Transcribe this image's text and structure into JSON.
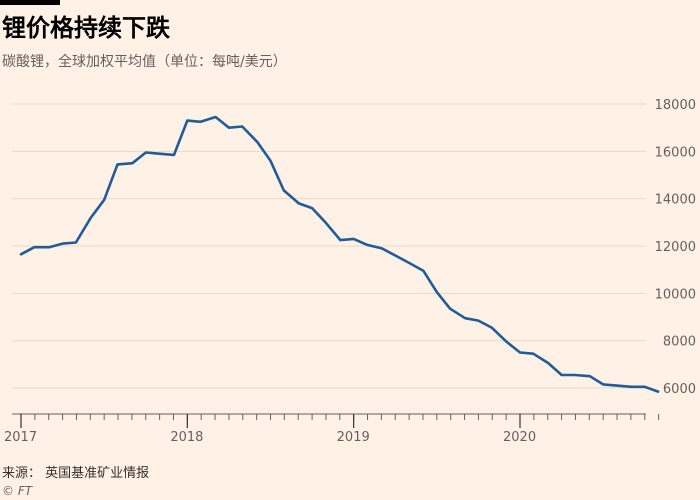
{
  "title": "锂价格持续下跌",
  "subtitle": "碳酸锂，全球加权平均值（单位：每吨/美元）",
  "source": "来源： 英国基准矿业情报",
  "credit": "© FT",
  "colors": {
    "background": "#fff1e5",
    "line": "#1f5c99",
    "grid": "#e6d9ce",
    "text": "#66605c"
  },
  "chart_data": {
    "type": "line",
    "title": "锂价格持续下跌",
    "xlabel": "",
    "ylabel": "",
    "x_ticks": [
      "2017",
      "2018",
      "2019",
      "2020"
    ],
    "y_ticks": [
      "18000",
      "16000",
      "14000",
      "12000",
      "10000",
      "8000",
      "6000"
    ],
    "ylim": [
      5000,
      18500
    ],
    "xlim": [
      2017.0,
      2020.83
    ],
    "grid": true,
    "series": [
      {
        "x": [
          2017.0,
          2017.08,
          2017.17,
          2017.25,
          2017.33,
          2017.42,
          2017.5,
          2017.58,
          2017.67,
          2017.75,
          2017.83,
          2017.92,
          2018.0,
          2018.08,
          2018.17,
          2018.25,
          2018.33,
          2018.42,
          2018.5,
          2018.58,
          2018.67,
          2018.75,
          2018.83,
          2018.92,
          2019.0,
          2019.08,
          2019.17,
          2019.25,
          2019.33,
          2019.42,
          2019.5,
          2019.58,
          2019.67,
          2019.75,
          2019.83,
          2019.92,
          2020.0,
          2020.08,
          2020.17,
          2020.25,
          2020.33,
          2020.42,
          2020.5,
          2020.58,
          2020.67,
          2020.75,
          2020.83
        ],
        "values": [
          11650,
          11950,
          11950,
          12100,
          12150,
          13200,
          13950,
          15450,
          15500,
          15950,
          15900,
          15850,
          17300,
          17250,
          17450,
          17000,
          17050,
          16400,
          15600,
          14350,
          13800,
          13600,
          13000,
          12250,
          12300,
          12050,
          11900,
          11600,
          11300,
          10950,
          10050,
          9350,
          8950,
          8850,
          8550,
          7950,
          7500,
          7450,
          7050,
          6550,
          6550,
          6500,
          6150,
          6100,
          6050,
          6050,
          5850
        ]
      }
    ]
  }
}
